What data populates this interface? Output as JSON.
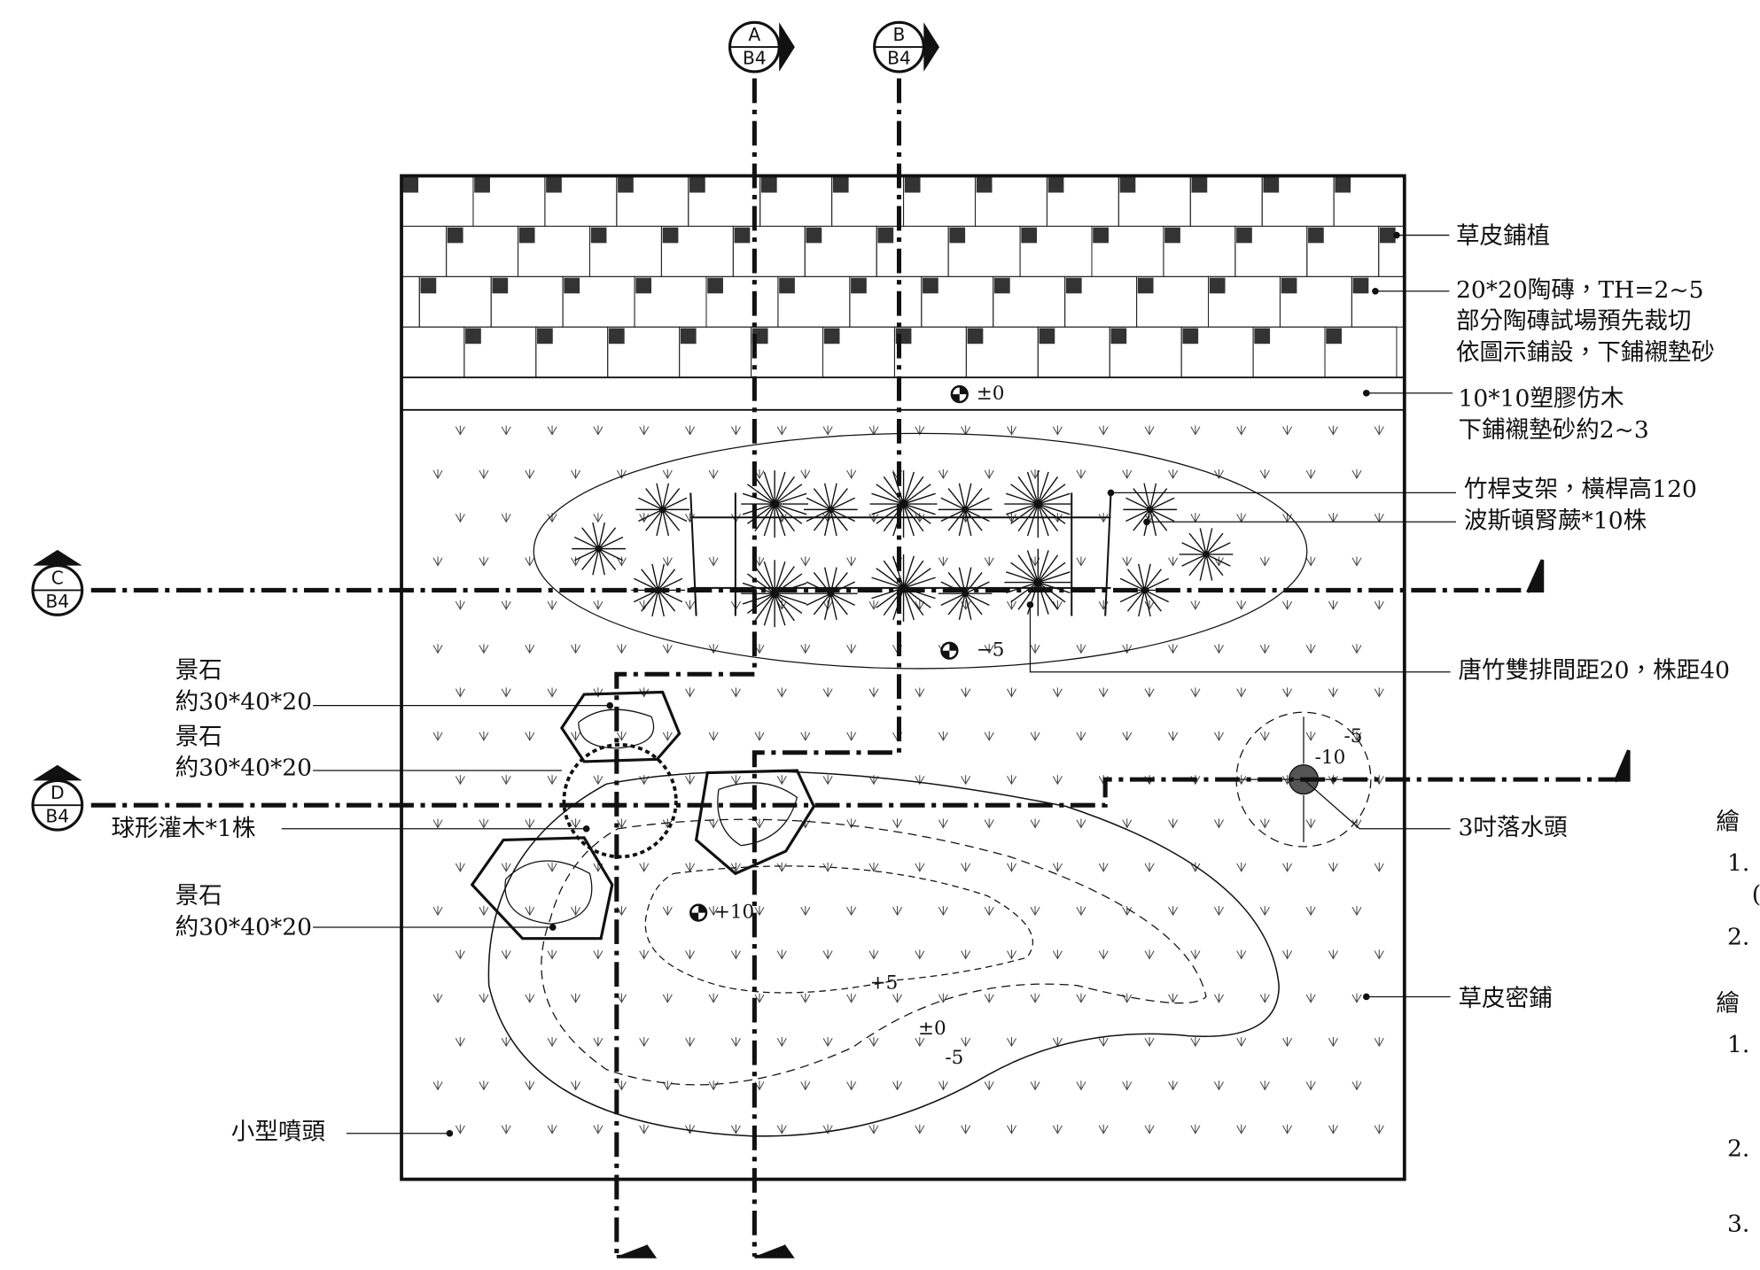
{
  "section_markers": [
    {
      "letter": "A",
      "sheet": "B4"
    },
    {
      "letter": "B",
      "sheet": "B4"
    },
    {
      "letter": "C",
      "sheet": "B4"
    },
    {
      "letter": "D",
      "sheet": "B4"
    }
  ],
  "labels": [
    {
      "lines": [
        "草皮鋪植"
      ]
    },
    {
      "lines": [
        "20*20陶磚，TH=2~5",
        "部分陶磚試場預先裁切",
        "依圖示鋪設，下鋪襯墊砂"
      ]
    },
    {
      "lines": [
        "10*10塑膠仿木",
        "下鋪襯墊砂約2~3"
      ]
    },
    {
      "lines": [
        "竹桿支架，橫桿高120"
      ]
    },
    {
      "lines": [
        "波斯頓腎蕨*10株"
      ]
    },
    {
      "lines": [
        "唐竹雙排間距20，株距40"
      ]
    },
    {
      "lines": [
        "3吋落水頭"
      ]
    },
    {
      "lines": [
        "草皮密鋪"
      ]
    },
    {
      "lines": [
        "小型噴頭"
      ]
    },
    {
      "lines": [
        "景石",
        "約30*40*20"
      ]
    },
    {
      "lines": [
        "景石",
        "約30*40*20"
      ]
    },
    {
      "lines": [
        "球形灌木*1株"
      ]
    },
    {
      "lines": [
        "景石",
        "約30*40*20"
      ]
    }
  ],
  "elevations": [
    "±0",
    "−5",
    "+10",
    "-10",
    "-5"
  ],
  "contours": [
    "+5",
    "±0",
    "-5"
  ],
  "notes": [
    "繪",
    "1.",
    "(",
    "2.",
    "繪",
    "1.",
    "2.",
    "3."
  ]
}
